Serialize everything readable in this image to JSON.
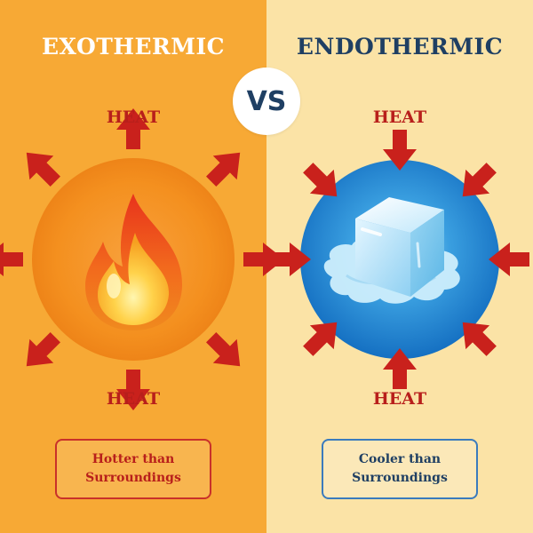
{
  "left": {
    "title": "EXOTHERMIC",
    "heat_top": "HEAT",
    "heat_bottom": "HEAT",
    "note": "Hotter than\nSurroundings",
    "icon": "flame-icon"
  },
  "right": {
    "title": "ENDOTHERMIC",
    "heat_top": "HEAT",
    "heat_bottom": "HEAT",
    "note": "Cooler than\nSurroundings",
    "icon": "ice-cube-icon"
  },
  "vs": "VS",
  "colors": {
    "left_bg": "#f7a935",
    "right_bg": "#fbe3a6",
    "arrow_red": "#c9211c",
    "heat_text": "#b81f1b",
    "endo_blue": "#1f3f63"
  }
}
